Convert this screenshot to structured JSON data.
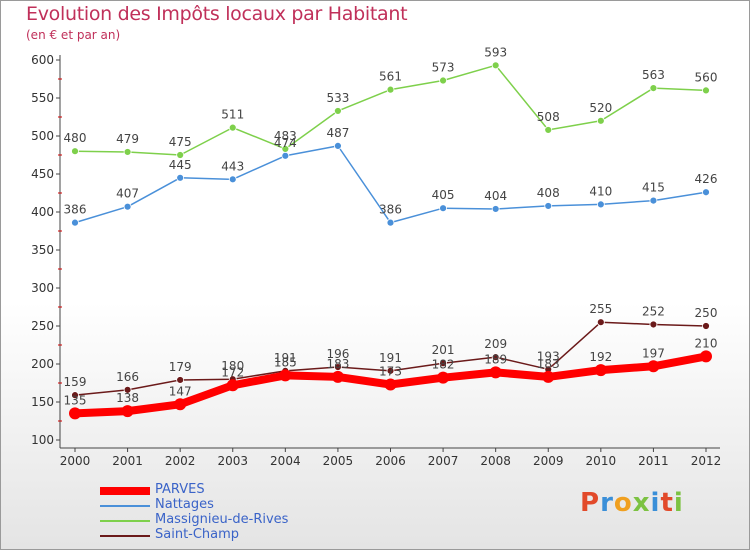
{
  "title": "Evolution des Impôts locaux par Habitant",
  "subtitle": "(en € et par an)",
  "logo_text": "Proxiti",
  "colors": {
    "title": "#c0305a",
    "axis_text": "#333333",
    "legend_text": "#3a63c8"
  },
  "chart_data": {
    "type": "line",
    "title": "Evolution des Impôts locaux par Habitant",
    "subtitle": "(en € et par an)",
    "xlabel": "",
    "ylabel": "",
    "x": [
      "2000",
      "2001",
      "2002",
      "2003",
      "2004",
      "2005",
      "2006",
      "2007",
      "2008",
      "2009",
      "2010",
      "2011",
      "2012"
    ],
    "ylim": [
      100,
      600
    ],
    "yticks": [
      100,
      150,
      200,
      250,
      300,
      350,
      400,
      450,
      500,
      550,
      600
    ],
    "grid": false,
    "legend_position": "bottom-left",
    "series": [
      {
        "name": "PARVES",
        "color": "#ff0000",
        "values": [
          135,
          138,
          147,
          172,
          185,
          183,
          173,
          182,
          189,
          183,
          192,
          197,
          210
        ]
      },
      {
        "name": "Nattages",
        "color": "#4a90d9",
        "values": [
          386,
          407,
          445,
          443,
          474,
          487,
          386,
          405,
          404,
          408,
          410,
          415,
          426
        ]
      },
      {
        "name": "Massignieu-de-Rives",
        "color": "#7ed04b",
        "values": [
          480,
          479,
          475,
          511,
          483,
          533,
          561,
          573,
          593,
          508,
          520,
          563,
          560
        ]
      },
      {
        "name": "Saint-Champ",
        "color": "#6b1a1a",
        "values": [
          159,
          166,
          179,
          180,
          191,
          196,
          191,
          201,
          209,
          193,
          255,
          252,
          250
        ]
      }
    ]
  }
}
